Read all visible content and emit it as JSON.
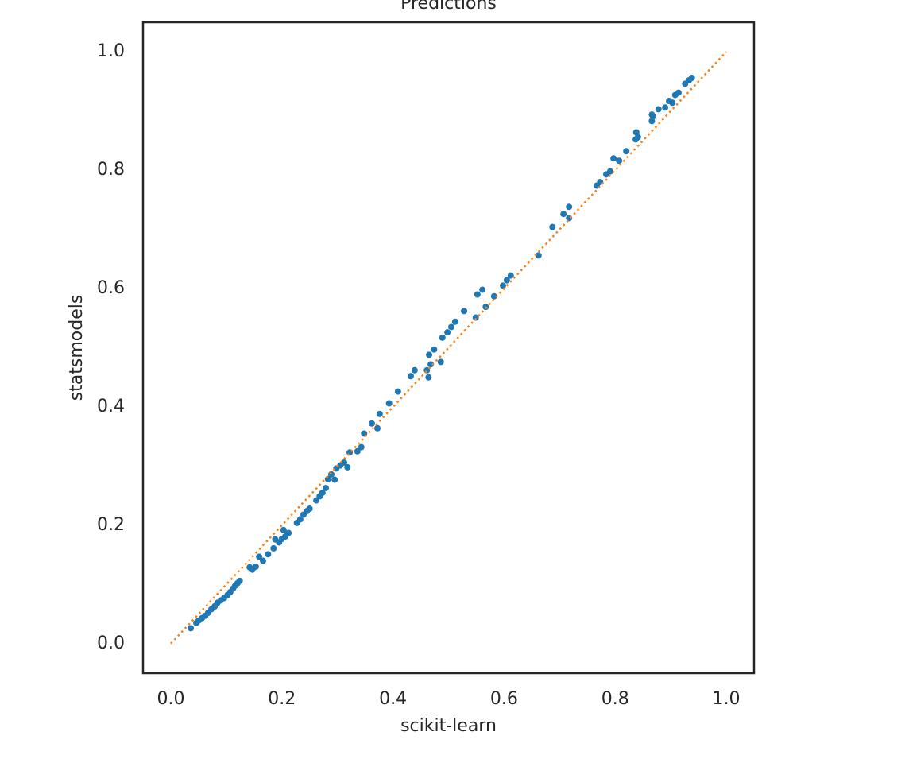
{
  "chart_data": {
    "type": "scatter",
    "title": "Predictions",
    "x_label": "scikit-learn",
    "y_label": "statsmodels",
    "xlim": [
      -0.05,
      1.05
    ],
    "ylim": [
      -0.05,
      1.05
    ],
    "xticks": [
      {
        "value": 0,
        "label": "0.0"
      },
      0.2,
      0.4,
      0.6,
      0.8,
      {
        "value": 1,
        "label": "1.0"
      }
    ],
    "yticks": [
      {
        "value": 0,
        "label": "0.0"
      },
      0.2,
      0.4,
      0.6,
      0.8,
      {
        "value": 1,
        "label": "1.0"
      }
    ],
    "grid": false,
    "series": [
      {
        "type": "scatter",
        "color": "#1f77b4",
        "x": [
          0.036,
          0.046,
          0.05,
          0.056,
          0.062,
          0.067,
          0.073,
          0.079,
          0.084,
          0.09,
          0.096,
          0.102,
          0.107,
          0.112,
          0.116,
          0.12,
          0.124,
          0.142,
          0.147,
          0.153,
          0.159,
          0.166,
          0.175,
          0.185,
          0.188,
          0.195,
          0.2,
          0.203,
          0.206,
          0.212,
          0.227,
          0.233,
          0.239,
          0.245,
          0.25,
          0.262,
          0.268,
          0.273,
          0.279,
          0.283,
          0.289,
          0.295,
          0.298,
          0.305,
          0.312,
          0.318,
          0.322,
          0.336,
          0.343,
          0.348,
          0.362,
          0.372,
          0.376,
          0.393,
          0.409,
          0.432,
          0.439,
          0.461,
          0.464,
          0.465,
          0.468,
          0.474,
          0.486,
          0.489,
          0.498,
          0.505,
          0.512,
          0.528,
          0.549,
          0.552,
          0.561,
          0.567,
          0.582,
          0.598,
          0.605,
          0.612,
          0.662,
          0.687,
          0.707,
          0.717,
          0.717,
          0.767,
          0.773,
          0.784,
          0.791,
          0.797,
          0.807,
          0.82,
          0.837,
          0.838,
          0.841,
          0.866,
          0.868,
          0.866,
          0.878,
          0.89,
          0.897,
          0.903,
          0.908,
          0.914,
          0.926,
          0.933,
          0.938
        ],
        "values": [
          0.026,
          0.035,
          0.039,
          0.043,
          0.047,
          0.052,
          0.058,
          0.063,
          0.069,
          0.073,
          0.077,
          0.082,
          0.087,
          0.093,
          0.098,
          0.102,
          0.106,
          0.129,
          0.125,
          0.13,
          0.147,
          0.14,
          0.151,
          0.161,
          0.176,
          0.171,
          0.177,
          0.192,
          0.181,
          0.187,
          0.204,
          0.21,
          0.218,
          0.224,
          0.228,
          0.242,
          0.249,
          0.255,
          0.263,
          0.278,
          0.286,
          0.277,
          0.296,
          0.301,
          0.306,
          0.298,
          0.323,
          0.325,
          0.332,
          0.355,
          0.372,
          0.364,
          0.388,
          0.406,
          0.426,
          0.452,
          0.462,
          0.462,
          0.45,
          0.488,
          0.472,
          0.497,
          0.476,
          0.517,
          0.526,
          0.535,
          0.544,
          0.562,
          0.551,
          0.59,
          0.598,
          0.569,
          0.587,
          0.605,
          0.614,
          0.622,
          0.656,
          0.704,
          0.726,
          0.738,
          0.719,
          0.774,
          0.78,
          0.793,
          0.798,
          0.82,
          0.816,
          0.832,
          0.852,
          0.864,
          0.856,
          0.883,
          0.891,
          0.894,
          0.903,
          0.906,
          0.917,
          0.914,
          0.927,
          0.931,
          0.946,
          0.952,
          0.956
        ]
      },
      {
        "type": "line",
        "style": "dotted",
        "color": "#ff7f0e",
        "x": [
          0,
          1
        ],
        "values": [
          0,
          1
        ]
      }
    ]
  }
}
